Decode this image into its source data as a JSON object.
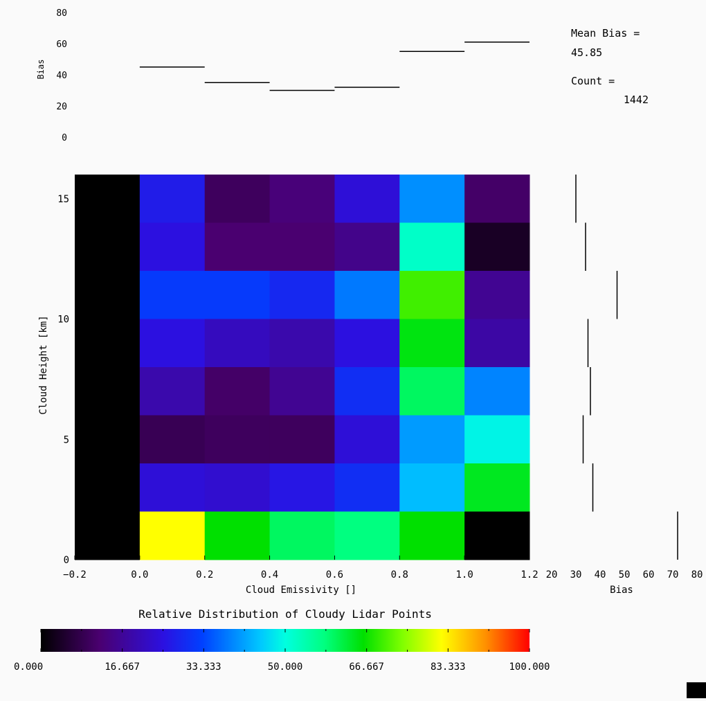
{
  "chart_data": [
    {
      "type": "step",
      "panel": "top",
      "ylabel": "Bias",
      "ylim": [
        0,
        80
      ],
      "yticks": [
        0,
        20,
        40,
        60,
        80
      ],
      "x_bins": [
        [
          0.0,
          0.2
        ],
        [
          0.2,
          0.4
        ],
        [
          0.4,
          0.6
        ],
        [
          0.6,
          0.8
        ],
        [
          0.8,
          1.0
        ],
        [
          1.0,
          1.2
        ]
      ],
      "values": [
        45,
        35,
        30,
        32,
        55,
        61
      ]
    },
    {
      "type": "heatmap",
      "panel": "main",
      "xlabel": "Cloud Emissivity []",
      "ylabel": "Cloud Height [km]",
      "xlim": [
        -0.2,
        1.2
      ],
      "ylim": [
        0,
        16
      ],
      "xticks": [
        -0.2,
        0.0,
        0.2,
        0.4,
        0.6,
        0.8,
        1.0,
        1.2
      ],
      "xtick_labels": [
        "−0.2",
        "0.0",
        "0.2",
        "0.4",
        "0.6",
        "0.8",
        "1.0",
        "1.2"
      ],
      "yticks": [
        0,
        5,
        10,
        15
      ],
      "x_bins": [
        -0.2,
        0.0,
        0.2,
        0.4,
        0.6,
        0.8,
        1.0,
        1.2
      ],
      "y_bins": [
        0,
        2,
        4,
        6,
        8,
        10,
        12,
        14,
        16
      ],
      "z_rows_top_to_bottom": [
        [
          0,
          27,
          10,
          13,
          24,
          40,
          11
        ],
        [
          0,
          25,
          12,
          12,
          15,
          52,
          4
        ],
        [
          0,
          32,
          32,
          29,
          38,
          70,
          16
        ],
        [
          0,
          25,
          21,
          19,
          25,
          65,
          18
        ],
        [
          0,
          19,
          11,
          16,
          30,
          60,
          39
        ],
        [
          0,
          9,
          10,
          10,
          24,
          41,
          49
        ],
        [
          0,
          24,
          23,
          26,
          30,
          44,
          64
        ],
        [
          0,
          82,
          66,
          60,
          58,
          66,
          0
        ]
      ],
      "zlim": [
        0,
        100
      ]
    },
    {
      "type": "step",
      "panel": "right",
      "orientation": "horizontal",
      "xlabel": "Bias",
      "xlim": [
        20,
        80
      ],
      "xticks": [
        20,
        30,
        40,
        50,
        60,
        70,
        80
      ],
      "y_bins": [
        [
          0,
          2
        ],
        [
          2,
          4
        ],
        [
          4,
          6
        ],
        [
          6,
          8
        ],
        [
          8,
          10
        ],
        [
          10,
          12
        ],
        [
          12,
          14
        ],
        [
          14,
          16
        ]
      ],
      "values": [
        72,
        37,
        33,
        36,
        35,
        47,
        34,
        30
      ]
    }
  ],
  "stats": {
    "mean_bias_label": "Mean Bias =",
    "mean_bias_value": "45.85",
    "count_label": "Count =",
    "count_value": "1442"
  },
  "colorbar": {
    "title": "Relative Distribution of Cloudy Lidar Points",
    "tick_labels": [
      "0.000",
      "16.667",
      "33.333",
      "50.000",
      "66.667",
      "83.333",
      "100.000"
    ],
    "range": [
      0,
      100
    ]
  }
}
